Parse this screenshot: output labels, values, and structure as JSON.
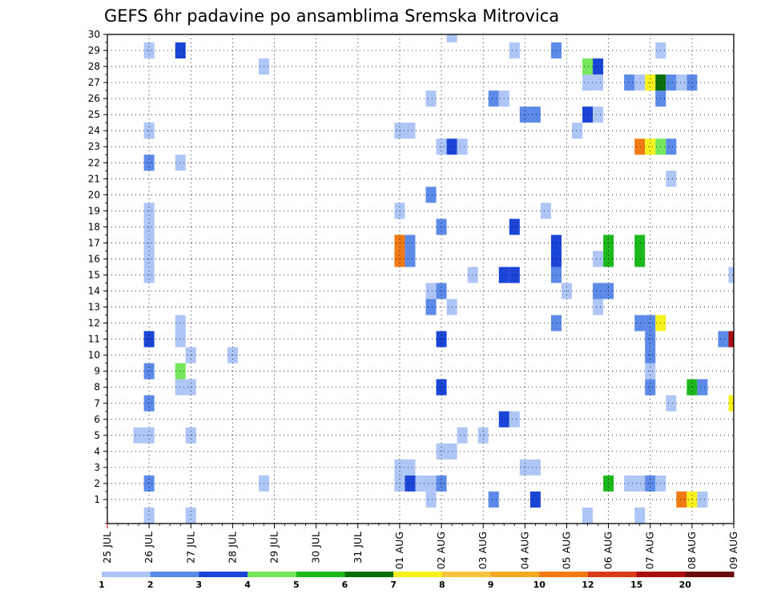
{
  "chart_data": {
    "type": "heatmap",
    "title": "GEFS 6hr padavine po ansamblima Sremska Mitrovica",
    "xlabel": "",
    "ylabel": "",
    "x_ticks": [
      "25 JUL",
      "26 JUL",
      "27 JUL",
      "28 JUL",
      "29 JUL",
      "30 JUL",
      "31 JUL",
      "01 AUG",
      "02 AUG",
      "03 AUG",
      "04 AUG",
      "05 AUG",
      "06 AUG",
      "07 AUG",
      "08 AUG",
      "09 AUG"
    ],
    "x_range": [
      "25 JUL 00Z",
      "09 AUG 00Z"
    ],
    "time_step_hours": 6,
    "y_ticks": [
      1,
      2,
      3,
      4,
      5,
      6,
      7,
      8,
      9,
      10,
      11,
      12,
      13,
      14,
      15,
      16,
      17,
      18,
      19,
      20,
      21,
      22,
      23,
      24,
      25,
      26,
      27,
      28,
      29,
      30
    ],
    "grid": "dotted",
    "colorbar": {
      "position": "bottom",
      "labels": [
        "1",
        "2",
        "3",
        "4",
        "5",
        "6",
        "7",
        "8",
        "9",
        "10",
        "12",
        "15",
        "20"
      ],
      "colors": [
        "#aec6f5",
        "#5b8ae8",
        "#1a45d6",
        "#74e85a",
        "#1cb81c",
        "#0a6e0a",
        "#f7f21e",
        "#f8c540",
        "#f5a623",
        "#f07a14",
        "#d93c14",
        "#a81010",
        "#6e0a0a"
      ]
    },
    "cells": [
      {
        "m": 1,
        "t": "01 AUG 18Z",
        "v": 1.5
      },
      {
        "m": 1,
        "t": "03 AUG 06Z",
        "v": 2.5
      },
      {
        "m": 1,
        "t": "04 AUG 06Z",
        "v": 3.5
      },
      {
        "m": 1,
        "t": "07 AUG 18Z",
        "v": 10
      },
      {
        "m": 1,
        "t": "08 AUG 00Z",
        "v": 7.5
      },
      {
        "m": 1,
        "t": "08 AUG 06Z",
        "v": 1.5
      },
      {
        "m": 2,
        "t": "26 JUL 00Z",
        "v": 2.5
      },
      {
        "m": 2,
        "t": "28 JUL 18Z",
        "v": 1.5
      },
      {
        "m": 2,
        "t": "01 AUG 00Z",
        "v": 1.5
      },
      {
        "m": 2,
        "t": "01 AUG 06Z",
        "v": 3.5
      },
      {
        "m": 2,
        "t": "01 AUG 12Z",
        "v": 1.5
      },
      {
        "m": 2,
        "t": "01 AUG 18Z",
        "v": 1.5
      },
      {
        "m": 2,
        "t": "02 AUG 00Z",
        "v": 2.5
      },
      {
        "m": 2,
        "t": "06 AUG 00Z",
        "v": 5.5
      },
      {
        "m": 2,
        "t": "06 AUG 12Z",
        "v": 1.5
      },
      {
        "m": 2,
        "t": "06 AUG 18Z",
        "v": 1.5
      },
      {
        "m": 2,
        "t": "07 AUG 00Z",
        "v": 2.5
      },
      {
        "m": 2,
        "t": "07 AUG 06Z",
        "v": 1.5
      },
      {
        "m": 3,
        "t": "01 AUG 00Z",
        "v": 1.5
      },
      {
        "m": 3,
        "t": "01 AUG 06Z",
        "v": 1.5
      },
      {
        "m": 3,
        "t": "04 AUG 00Z",
        "v": 1.5
      },
      {
        "m": 3,
        "t": "04 AUG 06Z",
        "v": 1.5
      },
      {
        "m": 4,
        "t": "02 AUG 00Z",
        "v": 1.5
      },
      {
        "m": 4,
        "t": "02 AUG 06Z",
        "v": 1.5
      },
      {
        "m": 5,
        "t": "25 JUL 18Z",
        "v": 1.5
      },
      {
        "m": 5,
        "t": "26 JUL 00Z",
        "v": 1.5
      },
      {
        "m": 5,
        "t": "27 JUL 00Z",
        "v": 1.5
      },
      {
        "m": 5,
        "t": "02 AUG 12Z",
        "v": 1.5
      },
      {
        "m": 5,
        "t": "03 AUG 00Z",
        "v": 1.5
      },
      {
        "m": 6,
        "t": "03 AUG 12Z",
        "v": 3.5
      },
      {
        "m": 6,
        "t": "03 AUG 18Z",
        "v": 1.5
      },
      {
        "m": 7,
        "t": "26 JUL 00Z",
        "v": 2.5
      },
      {
        "m": 7,
        "t": "07 AUG 12Z",
        "v": 1.5
      },
      {
        "m": 7,
        "t": "09 AUG 00Z",
        "v": 7.5
      },
      {
        "m": 8,
        "t": "26 JUL 18Z",
        "v": 1.5
      },
      {
        "m": 8,
        "t": "27 JUL 00Z",
        "v": 1.5
      },
      {
        "m": 8,
        "t": "02 AUG 00Z",
        "v": 3.5
      },
      {
        "m": 8,
        "t": "07 AUG 00Z",
        "v": 2.5
      },
      {
        "m": 8,
        "t": "08 AUG 00Z",
        "v": 5.5
      },
      {
        "m": 8,
        "t": "08 AUG 06Z",
        "v": 2.5
      },
      {
        "m": 9,
        "t": "26 JUL 00Z",
        "v": 2.5
      },
      {
        "m": 9,
        "t": "26 JUL 18Z",
        "v": 4.5
      },
      {
        "m": 9,
        "t": "07 AUG 00Z",
        "v": 1.5
      },
      {
        "m": 10,
        "t": "27 JUL 00Z",
        "v": 1.5
      },
      {
        "m": 10,
        "t": "28 JUL 00Z",
        "v": 1.5
      },
      {
        "m": 10,
        "t": "07 AUG 00Z",
        "v": 2.5
      },
      {
        "m": 11,
        "t": "26 JUL 00Z",
        "v": 3.5
      },
      {
        "m": 11,
        "t": "26 JUL 18Z",
        "v": 1.5
      },
      {
        "m": 11,
        "t": "02 AUG 00Z",
        "v": 3.5
      },
      {
        "m": 11,
        "t": "07 AUG 00Z",
        "v": 2.5
      },
      {
        "m": 11,
        "t": "08 AUG 18Z",
        "v": 2.5
      },
      {
        "m": 11,
        "t": "09 AUG 00Z",
        "v": 15
      },
      {
        "m": 12,
        "t": "26 JUL 18Z",
        "v": 1.5
      },
      {
        "m": 12,
        "t": "04 AUG 18Z",
        "v": 2.5
      },
      {
        "m": 12,
        "t": "06 AUG 18Z",
        "v": 2.5
      },
      {
        "m": 12,
        "t": "07 AUG 00Z",
        "v": 2.5
      },
      {
        "m": 12,
        "t": "07 AUG 06Z",
        "v": 7.5
      },
      {
        "m": 13,
        "t": "01 AUG 18Z",
        "v": 2.5
      },
      {
        "m": 13,
        "t": "02 AUG 06Z",
        "v": 1.5
      },
      {
        "m": 13,
        "t": "05 AUG 18Z",
        "v": 1.5
      },
      {
        "m": 14,
        "t": "01 AUG 18Z",
        "v": 1.5
      },
      {
        "m": 14,
        "t": "02 AUG 00Z",
        "v": 2.5
      },
      {
        "m": 14,
        "t": "05 AUG 00Z",
        "v": 1.5
      },
      {
        "m": 14,
        "t": "05 AUG 18Z",
        "v": 2.5
      },
      {
        "m": 14,
        "t": "06 AUG 00Z",
        "v": 2.5
      },
      {
        "m": 15,
        "t": "26 JUL 00Z",
        "v": 1.5
      },
      {
        "m": 15,
        "t": "02 AUG 18Z",
        "v": 1.5
      },
      {
        "m": 15,
        "t": "03 AUG 12Z",
        "v": 3.5
      },
      {
        "m": 15,
        "t": "03 AUG 18Z",
        "v": 3.5
      },
      {
        "m": 15,
        "t": "04 AUG 18Z",
        "v": 2.5
      },
      {
        "m": 15,
        "t": "09 AUG 00Z",
        "v": 1.5
      },
      {
        "m": 16,
        "t": "26 JUL 00Z",
        "v": 1.5
      },
      {
        "m": 16,
        "t": "01 AUG 00Z",
        "v": 10
      },
      {
        "m": 16,
        "t": "01 AUG 06Z",
        "v": 2.5
      },
      {
        "m": 16,
        "t": "04 AUG 18Z",
        "v": 3.5
      },
      {
        "m": 16,
        "t": "05 AUG 18Z",
        "v": 1.5
      },
      {
        "m": 16,
        "t": "06 AUG 00Z",
        "v": 5.5
      },
      {
        "m": 16,
        "t": "06 AUG 18Z",
        "v": 5.5
      },
      {
        "m": 17,
        "t": "26 JUL 00Z",
        "v": 1.5
      },
      {
        "m": 17,
        "t": "01 AUG 00Z",
        "v": 10
      },
      {
        "m": 17,
        "t": "01 AUG 06Z",
        "v": 2.5
      },
      {
        "m": 17,
        "t": "04 AUG 18Z",
        "v": 3.5
      },
      {
        "m": 17,
        "t": "06 AUG 00Z",
        "v": 5.5
      },
      {
        "m": 17,
        "t": "06 AUG 18Z",
        "v": 5.5
      },
      {
        "m": 18,
        "t": "26 JUL 00Z",
        "v": 1.5
      },
      {
        "m": 18,
        "t": "02 AUG 00Z",
        "v": 2.5
      },
      {
        "m": 18,
        "t": "03 AUG 18Z",
        "v": 3.5
      },
      {
        "m": 19,
        "t": "26 JUL 00Z",
        "v": 1.5
      },
      {
        "m": 19,
        "t": "01 AUG 00Z",
        "v": 1.5
      },
      {
        "m": 19,
        "t": "04 AUG 12Z",
        "v": 1.5
      },
      {
        "m": 20,
        "t": "01 AUG 18Z",
        "v": 2.5
      },
      {
        "m": 21,
        "t": "07 AUG 12Z",
        "v": 1.5
      },
      {
        "m": 22,
        "t": "26 JUL 00Z",
        "v": 2.5
      },
      {
        "m": 22,
        "t": "26 JUL 18Z",
        "v": 1.5
      },
      {
        "m": 23,
        "t": "02 AUG 00Z",
        "v": 1.5
      },
      {
        "m": 23,
        "t": "02 AUG 06Z",
        "v": 3.5
      },
      {
        "m": 23,
        "t": "02 AUG 12Z",
        "v": 1.5
      },
      {
        "m": 23,
        "t": "06 AUG 18Z",
        "v": 10
      },
      {
        "m": 23,
        "t": "07 AUG 00Z",
        "v": 7.5
      },
      {
        "m": 23,
        "t": "07 AUG 06Z",
        "v": 4.5
      },
      {
        "m": 23,
        "t": "07 AUG 12Z",
        "v": 2.5
      },
      {
        "m": 24,
        "t": "26 JUL 00Z",
        "v": 1.5
      },
      {
        "m": 24,
        "t": "01 AUG 00Z",
        "v": 1.5
      },
      {
        "m": 24,
        "t": "01 AUG 06Z",
        "v": 1.5
      },
      {
        "m": 24,
        "t": "05 AUG 06Z",
        "v": 1.5
      },
      {
        "m": 25,
        "t": "04 AUG 00Z",
        "v": 2.5
      },
      {
        "m": 25,
        "t": "04 AUG 06Z",
        "v": 2.5
      },
      {
        "m": 25,
        "t": "05 AUG 12Z",
        "v": 3.5
      },
      {
        "m": 25,
        "t": "05 AUG 18Z",
        "v": 1.5
      },
      {
        "m": 26,
        "t": "01 AUG 18Z",
        "v": 1.5
      },
      {
        "m": 26,
        "t": "03 AUG 06Z",
        "v": 2.5
      },
      {
        "m": 26,
        "t": "03 AUG 12Z",
        "v": 1.5
      },
      {
        "m": 26,
        "t": "07 AUG 06Z",
        "v": 2.5
      },
      {
        "m": 27,
        "t": "05 AUG 12Z",
        "v": 1.5
      },
      {
        "m": 27,
        "t": "05 AUG 18Z",
        "v": 1.5
      },
      {
        "m": 27,
        "t": "06 AUG 12Z",
        "v": 2.5
      },
      {
        "m": 27,
        "t": "06 AUG 18Z",
        "v": 1.5
      },
      {
        "m": 27,
        "t": "07 AUG 00Z",
        "v": 7.5
      },
      {
        "m": 27,
        "t": "07 AUG 06Z",
        "v": 6
      },
      {
        "m": 27,
        "t": "07 AUG 12Z",
        "v": 2.5
      },
      {
        "m": 27,
        "t": "07 AUG 18Z",
        "v": 1.5
      },
      {
        "m": 27,
        "t": "08 AUG 00Z",
        "v": 2.5
      },
      {
        "m": 28,
        "t": "28 JUL 18Z",
        "v": 1.5
      },
      {
        "m": 28,
        "t": "05 AUG 12Z",
        "v": 4.5
      },
      {
        "m": 28,
        "t": "05 AUG 18Z",
        "v": 3.5
      },
      {
        "m": 29,
        "t": "26 JUL 00Z",
        "v": 1.5
      },
      {
        "m": 29,
        "t": "26 JUL 18Z",
        "v": 3.5
      },
      {
        "m": 29,
        "t": "03 AUG 18Z",
        "v": 1.5
      },
      {
        "m": 29,
        "t": "04 AUG 18Z",
        "v": 2.5
      },
      {
        "m": 29,
        "t": "07 AUG 06Z",
        "v": 1.5
      },
      {
        "m": 30,
        "t": "02 AUG 06Z",
        "v": 1.5
      },
      {
        "m": 0,
        "t": "26 JUL 00Z",
        "v": 1.5
      },
      {
        "m": 0,
        "t": "27 JUL 00Z",
        "v": 1.5
      },
      {
        "m": 0,
        "t": "05 AUG 12Z",
        "v": 1.5
      },
      {
        "m": 0,
        "t": "06 AUG 18Z",
        "v": 1.5
      }
    ]
  }
}
